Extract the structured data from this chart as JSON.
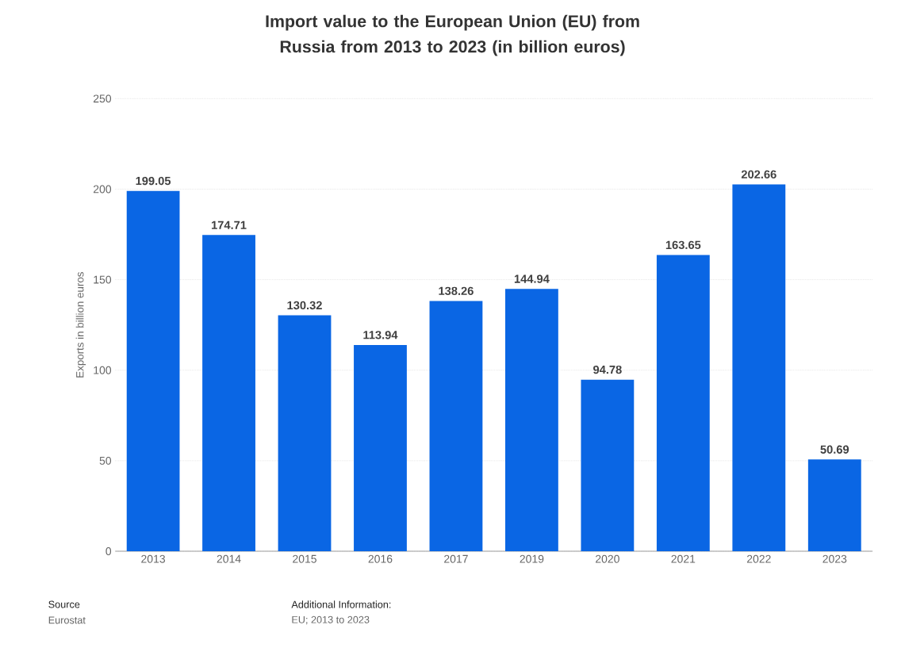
{
  "chart_data": {
    "type": "bar",
    "title": "Import value to the European Union (EU) from Russia from 2013 to 2023 (in billion euros)",
    "ylabel": "Exports in billion euros",
    "categories": [
      "2013",
      "2014",
      "2015",
      "2016",
      "2017",
      "2019",
      "2020",
      "2021",
      "2022",
      "2023"
    ],
    "values": [
      199.05,
      174.71,
      130.32,
      113.94,
      138.26,
      144.94,
      94.78,
      163.65,
      202.66,
      50.69
    ],
    "color": "#0a66e4",
    "ylim": [
      0,
      250
    ],
    "yticks": [
      0,
      50,
      100,
      150,
      200,
      250
    ],
    "grid": "y",
    "data_labels": true,
    "annotations": [
      "Source",
      "Eurostat",
      "Additional Information:",
      "EU; 2013 to 2023"
    ]
  }
}
